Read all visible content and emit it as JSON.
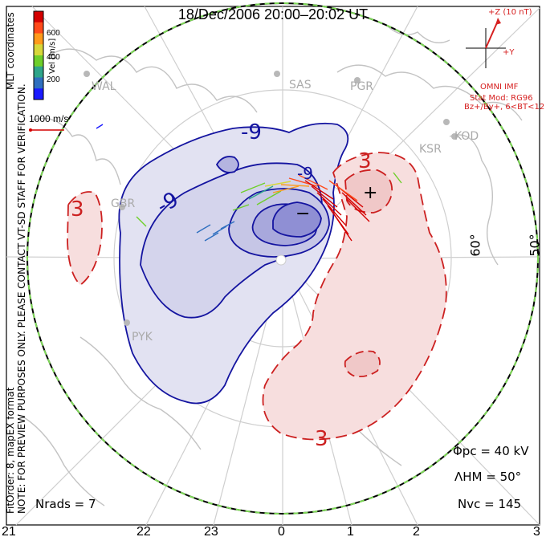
{
  "title": "18/Dec/2006 20:00–20:02 UT",
  "coord_label": "MLT coordinates",
  "colorbar": {
    "label": "Vel [m/s]",
    "ticks": [
      "600",
      "400",
      "200"
    ],
    "colors": [
      "#1a1aff",
      "#2f6fbf",
      "#2fa58a",
      "#6ecf2a",
      "#d7d73a",
      "#ff9a1a",
      "#ff4a1a",
      "#d40000"
    ]
  },
  "scale_label": "1000 m/s",
  "note": "NOTE: FOR PREVIEW PURPOSES ONLY. PLEASE CONTACT VT-SD STAFF FOR VERIFICATION.",
  "fit_order": "FitOrder: 8, mapEX format",
  "imf": {
    "z_label": "+Z (10 nT)",
    "y_label": "+Y",
    "source": "OMNI IMF",
    "stat_mod": "Stat Mod: RG96",
    "condition": "Bz+/By+, 6<BT<12",
    "color": "#d62020"
  },
  "sites": [
    "WAL",
    "SAS",
    "PGR",
    "KSR",
    "KOD",
    "GBR",
    "PYK"
  ],
  "lat_labels": [
    "60°",
    "50°"
  ],
  "contour_labels": {
    "neg1": "-9",
    "neg2": "-9",
    "neg3": "-9",
    "minus": "−",
    "plus": "+",
    "pos1": "3",
    "pos2": "3",
    "pos3": "3"
  },
  "stats": {
    "phi_pc": "Φpc = 40 kV",
    "lambda_hm": "ΛHM = 50°",
    "n_vc": "Nvc = 145",
    "n_rads": "Nrads = 7"
  },
  "mlt_ticks": [
    "21",
    "22",
    "23",
    "0",
    "1",
    "2",
    "3"
  ],
  "colors": {
    "negative_fill": "#e2e2f2",
    "negative_line": "#1414a0",
    "positive_fill": "#f7dede",
    "positive_line": "#cc2020",
    "boundary": "#7ed957",
    "coast": "#c8c8c8",
    "grid": "#c8c8c8"
  }
}
